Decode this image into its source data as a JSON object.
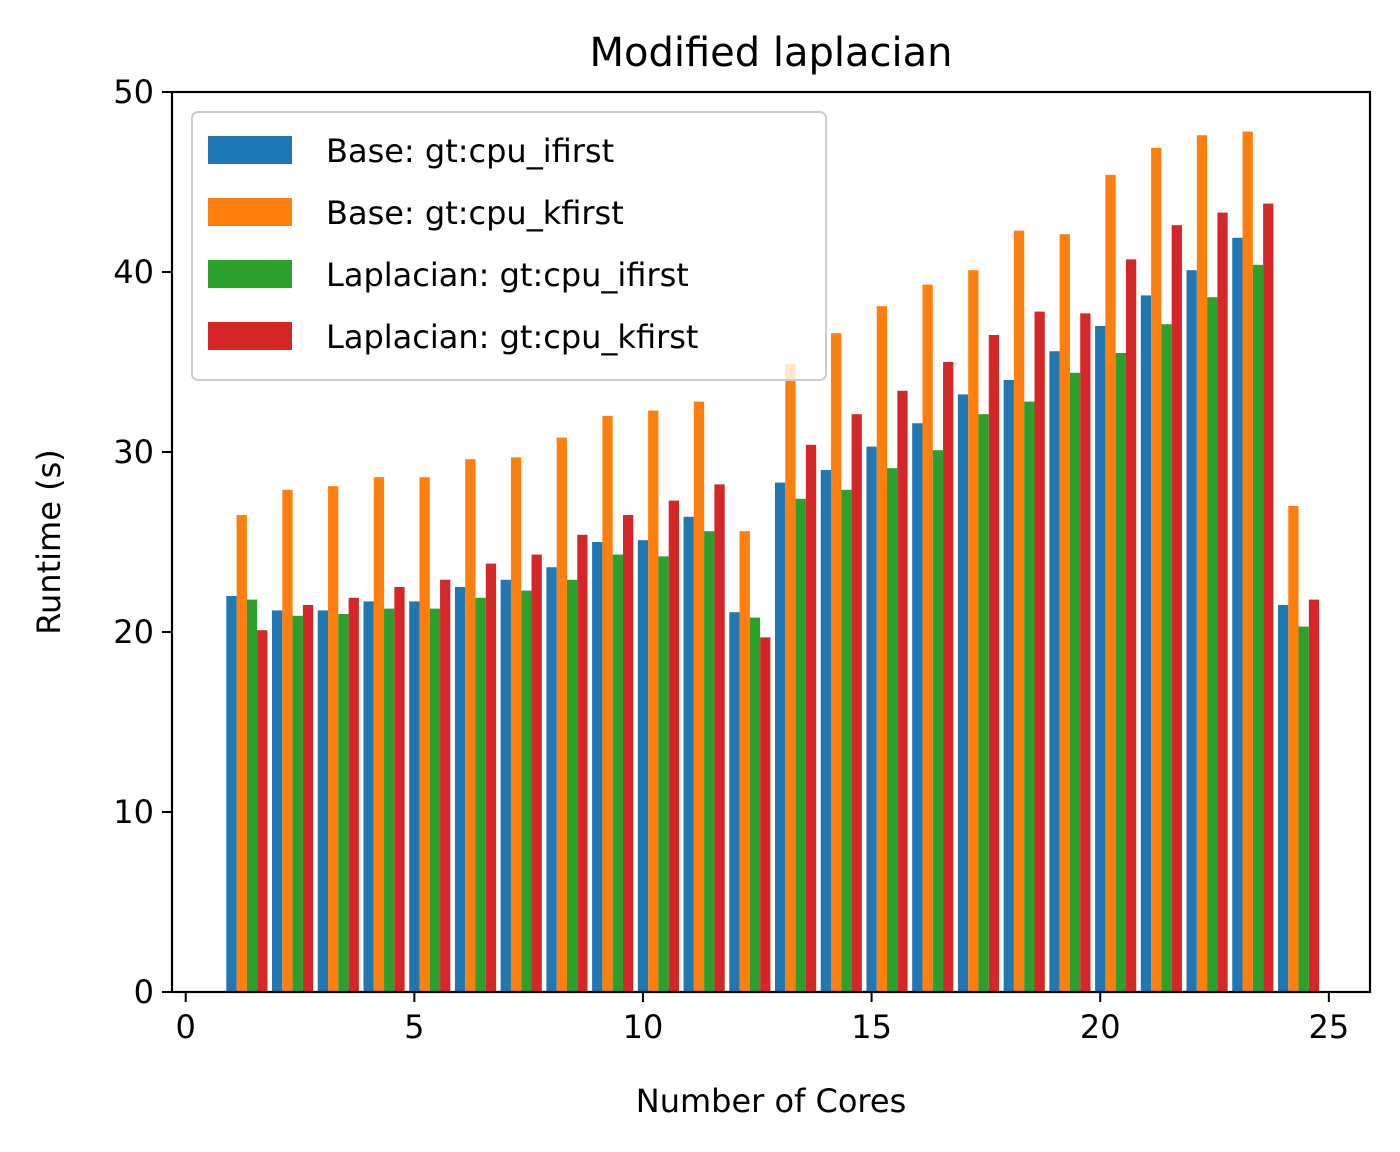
{
  "chart_data": {
    "type": "bar",
    "title": "Modified laplacian",
    "xlabel": "Number of Cores",
    "ylabel": "Runtime (s)",
    "xlim": [
      -0.3,
      25.9
    ],
    "ylim": [
      0,
      50
    ],
    "xticks": [
      0,
      5,
      10,
      15,
      20,
      25
    ],
    "yticks": [
      0,
      10,
      20,
      30,
      40,
      50
    ],
    "grid": false,
    "legend_position": "top-left",
    "x": [
      1,
      2,
      3,
      4,
      5,
      6,
      7,
      8,
      9,
      10,
      11,
      12,
      13,
      14,
      15,
      16,
      17,
      18,
      19,
      20,
      21,
      22,
      23,
      24
    ],
    "series": [
      {
        "name": "Base: gt:cpu_ifirst",
        "color": "#1f77b4",
        "values": [
          22.0,
          21.2,
          21.2,
          21.7,
          21.7,
          22.5,
          22.9,
          23.6,
          25.0,
          25.1,
          26.4,
          21.1,
          28.3,
          29.0,
          30.3,
          31.6,
          33.2,
          34.0,
          35.6,
          37.0,
          38.7,
          40.1,
          41.9,
          21.5
        ]
      },
      {
        "name": "Base: gt:cpu_kfirst",
        "color": "#ff7f0e",
        "values": [
          26.5,
          27.9,
          28.1,
          28.6,
          28.6,
          29.6,
          29.7,
          30.8,
          32.0,
          32.3,
          32.8,
          25.6,
          34.9,
          36.6,
          38.1,
          39.3,
          40.1,
          42.3,
          42.1,
          45.4,
          46.9,
          47.6,
          47.8,
          27.0
        ]
      },
      {
        "name": "Laplacian: gt:cpu_ifirst",
        "color": "#2ca02c",
        "values": [
          21.8,
          20.9,
          21.0,
          21.3,
          21.3,
          21.9,
          22.3,
          22.9,
          24.3,
          24.2,
          25.6,
          20.8,
          27.4,
          27.9,
          29.1,
          30.1,
          32.1,
          32.8,
          34.4,
          35.5,
          37.1,
          38.6,
          40.4,
          20.3
        ]
      },
      {
        "name": "Laplacian: gt:cpu_kfirst",
        "color": "#d62728",
        "values": [
          20.1,
          21.5,
          21.9,
          22.5,
          22.9,
          23.8,
          24.3,
          25.4,
          26.5,
          27.3,
          28.2,
          19.7,
          30.4,
          32.1,
          33.4,
          35.0,
          36.5,
          37.8,
          37.7,
          40.7,
          42.6,
          43.3,
          43.8,
          21.8
        ]
      }
    ]
  }
}
